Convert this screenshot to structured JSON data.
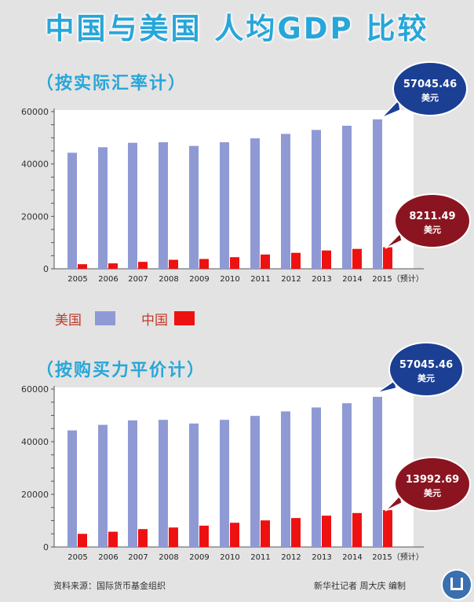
{
  "title": "中国与美国 人均GDP 比较",
  "legend": {
    "us": "美国",
    "cn": "中国"
  },
  "colors": {
    "us": "#8f9ad5",
    "cn": "#ee1111",
    "blue_callout": "#1a3f93",
    "red_callout": "#8a1520",
    "accent": "#27a6d9"
  },
  "footer": {
    "source": "资料来源：国际货币基金组织",
    "credit": "新华社记者 周大庆 编制"
  },
  "chart_data": [
    {
      "type": "bar",
      "title": "（按实际汇率计）",
      "categories": [
        "2005",
        "2006",
        "2007",
        "2008",
        "2009",
        "2010",
        "2011",
        "2012",
        "2013",
        "2014",
        "2015（预计）"
      ],
      "series": [
        {
          "name": "美国",
          "values": [
            44300,
            46400,
            48100,
            48300,
            46900,
            48300,
            49800,
            51500,
            53000,
            54600,
            57045.46
          ]
        },
        {
          "name": "中国",
          "values": [
            1750,
            2070,
            2650,
            3440,
            3740,
            4430,
            5450,
            6090,
            6990,
            7590,
            8211.49
          ]
        }
      ],
      "ylim": [
        0,
        60000
      ],
      "yticks": [
        "0",
        "20000",
        "40000",
        "60000"
      ],
      "callouts": [
        {
          "value": "57045.46",
          "unit": "美元"
        },
        {
          "value": "8211.49",
          "unit": "美元"
        }
      ]
    },
    {
      "type": "bar",
      "title": "（按购买力平价计）",
      "categories": [
        "2005",
        "2006",
        "2007",
        "2008",
        "2009",
        "2010",
        "2011",
        "2012",
        "2013",
        "2014",
        "2015（预计）"
      ],
      "series": [
        {
          "name": "美国",
          "values": [
            44300,
            46400,
            48100,
            48300,
            46900,
            48300,
            49800,
            51500,
            53000,
            54600,
            57045.46
          ]
        },
        {
          "name": "中国",
          "values": [
            5000,
            5800,
            6800,
            7400,
            8100,
            9200,
            10100,
            11000,
            11900,
            12900,
            13992.69
          ]
        }
      ],
      "ylim": [
        0,
        60000
      ],
      "yticks": [
        "0",
        "20000",
        "40000",
        "60000"
      ],
      "callouts": [
        {
          "value": "57045.46",
          "unit": "美元"
        },
        {
          "value": "13992.69",
          "unit": "美元"
        }
      ]
    }
  ]
}
